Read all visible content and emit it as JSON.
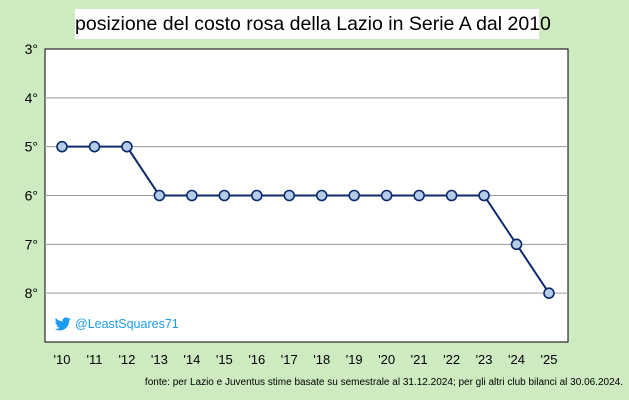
{
  "chart_data": {
    "type": "line",
    "title": "posizione del costo rosa della Lazio in  Serie A dal 2010",
    "x": [
      "'10",
      "'11",
      "'12",
      "'13",
      "'14",
      "'15",
      "'16",
      "'17",
      "'18",
      "'19",
      "'20",
      "'21",
      "'22",
      "'23",
      "'24",
      "'25"
    ],
    "y": [
      5,
      5,
      5,
      6,
      6,
      6,
      6,
      6,
      6,
      6,
      6,
      6,
      6,
      6,
      7,
      8
    ],
    "y_tick_labels": [
      "3°",
      "4°",
      "5°",
      "6°",
      "7°",
      "8°"
    ],
    "y_ticks": [
      3,
      4,
      5,
      6,
      7,
      8
    ],
    "ylim": [
      3,
      9
    ],
    "y_inverted": true,
    "grid": true,
    "xlabel": "",
    "ylabel": "",
    "line_color": "#0b2a6b",
    "marker_fill": "#b4cce8"
  },
  "watermark": {
    "handle": "@LeastSquares71",
    "icon": "twitter-bird-icon",
    "color": "#1d9bf0"
  },
  "source": "fonte: per Lazio e Juventus stime  basate su semestrale al 31.12.2024; per gli altri club bilanci al 30.06.2024."
}
